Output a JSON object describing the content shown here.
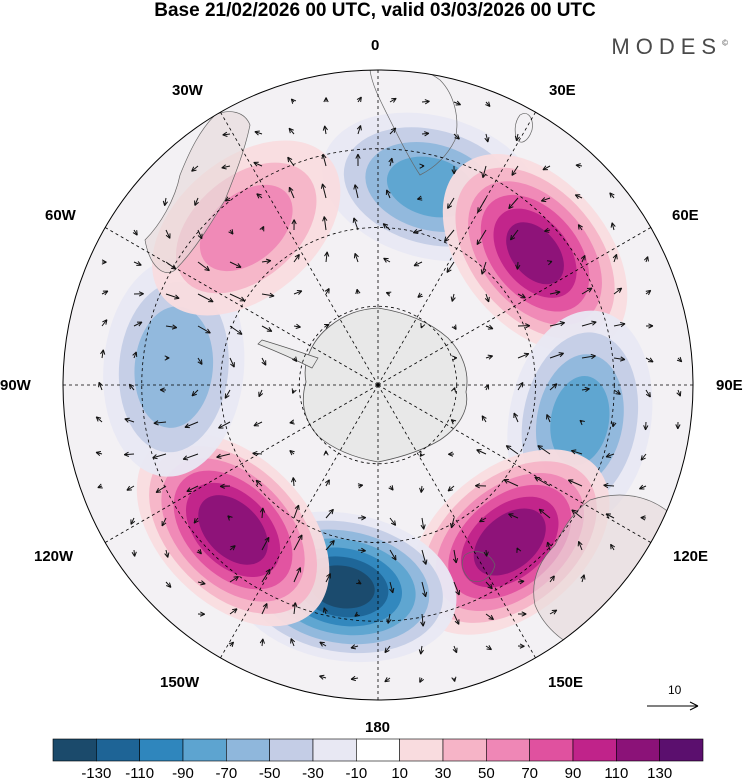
{
  "title": "Base 21/02/2026 00 UTC, valid 03/03/2026 00 UTC",
  "logo": "MODES",
  "logo_mark": "©",
  "longitude_labels": {
    "0": "0",
    "30E": "30E",
    "60E": "60E",
    "90E": "90E",
    "120E": "120E",
    "150E": "150E",
    "180": "180",
    "150W": "150W",
    "120W": "120W",
    "90W": "90W",
    "60W": "60W",
    "30W": "30W"
  },
  "reference_vector_label": "10",
  "colorbar": {
    "tick_labels": [
      "-130",
      "-110",
      "-90",
      "-70",
      "-50",
      "-30",
      "-10",
      "10",
      "30",
      "50",
      "70",
      "90",
      "110",
      "130"
    ],
    "colors": [
      "#1b4a6b",
      "#1e6496",
      "#2f86bd",
      "#5da4d0",
      "#8fb7dc",
      "#c4cde6",
      "#e8e8f3",
      "#ffffff",
      "#f9dcdf",
      "#f6b4c7",
      "#ef87b6",
      "#e0519f",
      "#c0238a",
      "#8b1278",
      "#5b0f6e"
    ]
  },
  "map": {
    "projection": "south polar stereographic",
    "anomaly_centers": [
      {
        "lon": 15,
        "value": -80
      },
      {
        "lon": 50,
        "value": 120
      },
      {
        "lon": 100,
        "value": -80
      },
      {
        "lon": 140,
        "value": 130
      },
      {
        "lon": 190,
        "value": -140
      },
      {
        "lon": 225,
        "value": 130
      },
      {
        "lon": 275,
        "value": -70
      },
      {
        "lon": 320,
        "value": 60
      }
    ]
  }
}
